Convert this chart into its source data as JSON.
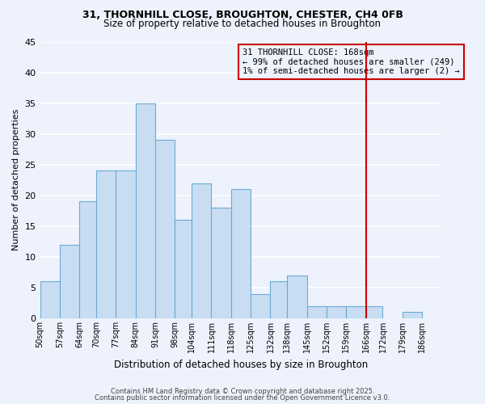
{
  "title1": "31, THORNHILL CLOSE, BROUGHTON, CHESTER, CH4 0FB",
  "title2": "Size of property relative to detached houses in Broughton",
  "xlabel": "Distribution of detached houses by size in Broughton",
  "ylabel": "Number of detached properties",
  "bar_labels": [
    "50sqm",
    "57sqm",
    "64sqm",
    "70sqm",
    "77sqm",
    "84sqm",
    "91sqm",
    "98sqm",
    "104sqm",
    "111sqm",
    "118sqm",
    "125sqm",
    "132sqm",
    "138sqm",
    "145sqm",
    "152sqm",
    "159sqm",
    "166sqm",
    "172sqm",
    "179sqm",
    "186sqm"
  ],
  "bar_values": [
    6,
    12,
    19,
    24,
    24,
    35,
    29,
    16,
    22,
    18,
    21,
    4,
    6,
    7,
    2,
    2,
    2,
    2,
    0,
    1,
    0
  ],
  "bin_edges": [
    50,
    57,
    64,
    70,
    77,
    84,
    91,
    98,
    104,
    111,
    118,
    125,
    132,
    138,
    145,
    152,
    159,
    166,
    172,
    179,
    186,
    193
  ],
  "bar_color": "#c9ddf2",
  "bar_edge_color": "#6aaad4",
  "bg_color": "#edf2fc",
  "grid_color": "#ffffff",
  "vline_x": 166,
  "vline_color": "#cc0000",
  "annotation_text": "31 THORNHILL CLOSE: 168sqm\n← 99% of detached houses are smaller (249)\n1% of semi-detached houses are larger (2) →",
  "annotation_box_color": "#cc0000",
  "ylim": [
    0,
    45
  ],
  "yticks": [
    0,
    5,
    10,
    15,
    20,
    25,
    30,
    35,
    40,
    45
  ],
  "footnote1": "Contains HM Land Registry data © Crown copyright and database right 2025.",
  "footnote2": "Contains public sector information licensed under the Open Government Licence v3.0."
}
